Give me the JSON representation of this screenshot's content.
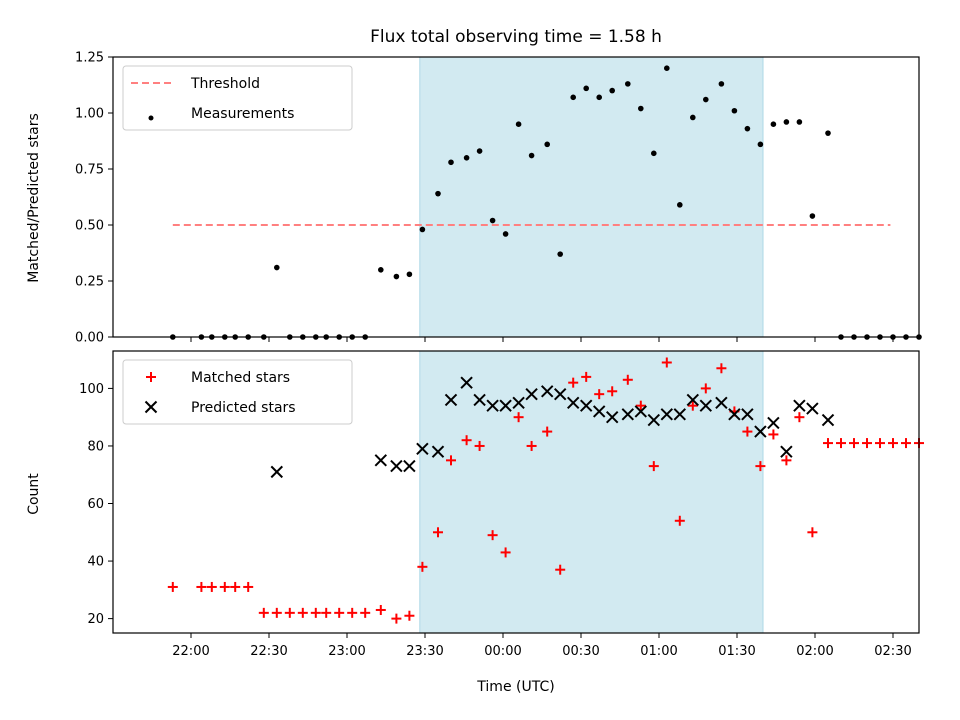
{
  "chart_data": [
    {
      "type": "scatter",
      "title": "Flux total observing time = 1.58 h",
      "ylabel": "Matched/Predicted stars",
      "xlabel": "",
      "ylim": [
        0,
        1.25
      ],
      "yticks": [
        "0.00",
        "0.25",
        "0.50",
        "0.75",
        "1.00",
        "1.25"
      ],
      "x_axis_type": "time (minutes after 22:00 UTC)",
      "xlim": [
        -30,
        280
      ],
      "grid": false,
      "legend_location": "upper left",
      "shaded_span": {
        "from_min": 88,
        "to_min": 220,
        "color": "#add8e6"
      },
      "threshold": {
        "label": "Threshold",
        "value": 0.5,
        "from_min": -7,
        "to_min": 269,
        "color": "#ff8080",
        "style": "dashed"
      },
      "series": [
        {
          "name": "Measurements",
          "marker": "dot",
          "color": "#000000",
          "points": [
            [
              -7,
              0
            ],
            [
              4,
              0
            ],
            [
              8,
              0
            ],
            [
              13,
              0
            ],
            [
              17,
              0
            ],
            [
              22,
              0
            ],
            [
              28,
              0
            ],
            [
              33,
              0.31
            ],
            [
              38,
              0
            ],
            [
              43,
              0
            ],
            [
              48,
              0
            ],
            [
              52,
              0
            ],
            [
              57,
              0
            ],
            [
              62,
              0
            ],
            [
              67,
              0
            ],
            [
              73,
              0.3
            ],
            [
              79,
              0.27
            ],
            [
              84,
              0.28
            ],
            [
              89,
              0.48
            ],
            [
              95,
              0.64
            ],
            [
              100,
              0.78
            ],
            [
              106,
              0.8
            ],
            [
              111,
              0.83
            ],
            [
              116,
              0.52
            ],
            [
              121,
              0.46
            ],
            [
              126,
              0.95
            ],
            [
              131,
              0.81
            ],
            [
              137,
              0.86
            ],
            [
              142,
              0.37
            ],
            [
              147,
              1.07
            ],
            [
              152,
              1.11
            ],
            [
              157,
              1.07
            ],
            [
              162,
              1.1
            ],
            [
              168,
              1.13
            ],
            [
              173,
              1.02
            ],
            [
              178,
              0.82
            ],
            [
              183,
              1.2
            ],
            [
              188,
              0.59
            ],
            [
              193,
              0.98
            ],
            [
              198,
              1.06
            ],
            [
              204,
              1.13
            ],
            [
              209,
              1.01
            ],
            [
              214,
              0.93
            ],
            [
              219,
              0.86
            ],
            [
              224,
              0.95
            ],
            [
              229,
              0.96
            ],
            [
              234,
              0.96
            ],
            [
              239,
              0.54
            ],
            [
              245,
              0.91
            ],
            [
              250,
              0
            ],
            [
              255,
              0
            ],
            [
              260,
              0
            ],
            [
              265,
              0
            ],
            [
              270,
              0
            ],
            [
              275,
              0
            ],
            [
              280,
              0
            ]
          ]
        }
      ]
    },
    {
      "type": "scatter",
      "title": "",
      "ylabel": "Count",
      "xlabel": "Time (UTC)",
      "ylim": [
        15,
        113
      ],
      "yticks": [
        "20",
        "40",
        "60",
        "80",
        "100"
      ],
      "x_axis_type": "time (minutes after 22:00 UTC)",
      "xlim": [
        -30,
        280
      ],
      "xticks": [
        "22:00",
        "22:30",
        "23:00",
        "23:30",
        "00:00",
        "00:30",
        "01:00",
        "01:30",
        "02:00",
        "02:30"
      ],
      "grid": false,
      "legend_location": "upper left",
      "shaded_span": {
        "from_min": 88,
        "to_min": 220,
        "color": "#add8e6"
      },
      "series": [
        {
          "name": "Matched stars",
          "marker": "plus",
          "color": "#ff0000",
          "points": [
            [
              -7,
              31
            ],
            [
              4,
              31
            ],
            [
              8,
              31
            ],
            [
              13,
              31
            ],
            [
              17,
              31
            ],
            [
              22,
              31
            ],
            [
              28,
              22
            ],
            [
              33,
              22
            ],
            [
              38,
              22
            ],
            [
              43,
              22
            ],
            [
              48,
              22
            ],
            [
              52,
              22
            ],
            [
              57,
              22
            ],
            [
              62,
              22
            ],
            [
              67,
              22
            ],
            [
              73,
              23
            ],
            [
              79,
              20
            ],
            [
              84,
              21
            ],
            [
              89,
              38
            ],
            [
              95,
              50
            ],
            [
              100,
              75
            ],
            [
              106,
              82
            ],
            [
              111,
              80
            ],
            [
              116,
              49
            ],
            [
              121,
              43
            ],
            [
              126,
              90
            ],
            [
              131,
              80
            ],
            [
              137,
              85
            ],
            [
              142,
              37
            ],
            [
              147,
              102
            ],
            [
              152,
              104
            ],
            [
              157,
              98
            ],
            [
              162,
              99
            ],
            [
              168,
              103
            ],
            [
              173,
              94
            ],
            [
              178,
              73
            ],
            [
              183,
              109
            ],
            [
              188,
              54
            ],
            [
              193,
              94
            ],
            [
              198,
              100
            ],
            [
              204,
              107
            ],
            [
              209,
              92
            ],
            [
              214,
              85
            ],
            [
              219,
              73
            ],
            [
              224,
              84
            ],
            [
              229,
              75
            ],
            [
              234,
              90
            ],
            [
              239,
              50
            ],
            [
              245,
              81
            ],
            [
              250,
              81
            ],
            [
              255,
              81
            ],
            [
              260,
              81
            ],
            [
              265,
              81
            ],
            [
              270,
              81
            ],
            [
              275,
              81
            ],
            [
              280,
              81
            ]
          ]
        },
        {
          "name": "Predicted stars",
          "marker": "x",
          "color": "#000000",
          "points": [
            [
              33,
              71
            ],
            [
              73,
              75
            ],
            [
              79,
              73
            ],
            [
              84,
              73
            ],
            [
              89,
              79
            ],
            [
              95,
              78
            ],
            [
              100,
              96
            ],
            [
              106,
              102
            ],
            [
              111,
              96
            ],
            [
              116,
              94
            ],
            [
              121,
              94
            ],
            [
              126,
              95
            ],
            [
              131,
              98
            ],
            [
              137,
              99
            ],
            [
              142,
              98
            ],
            [
              147,
              95
            ],
            [
              152,
              94
            ],
            [
              157,
              92
            ],
            [
              162,
              90
            ],
            [
              168,
              91
            ],
            [
              173,
              92
            ],
            [
              178,
              89
            ],
            [
              183,
              91
            ],
            [
              188,
              91
            ],
            [
              193,
              96
            ],
            [
              198,
              94
            ],
            [
              204,
              95
            ],
            [
              209,
              91
            ],
            [
              214,
              91
            ],
            [
              219,
              85
            ],
            [
              224,
              88
            ],
            [
              229,
              78
            ],
            [
              234,
              94
            ],
            [
              239,
              93
            ],
            [
              245,
              89
            ]
          ]
        }
      ]
    }
  ]
}
